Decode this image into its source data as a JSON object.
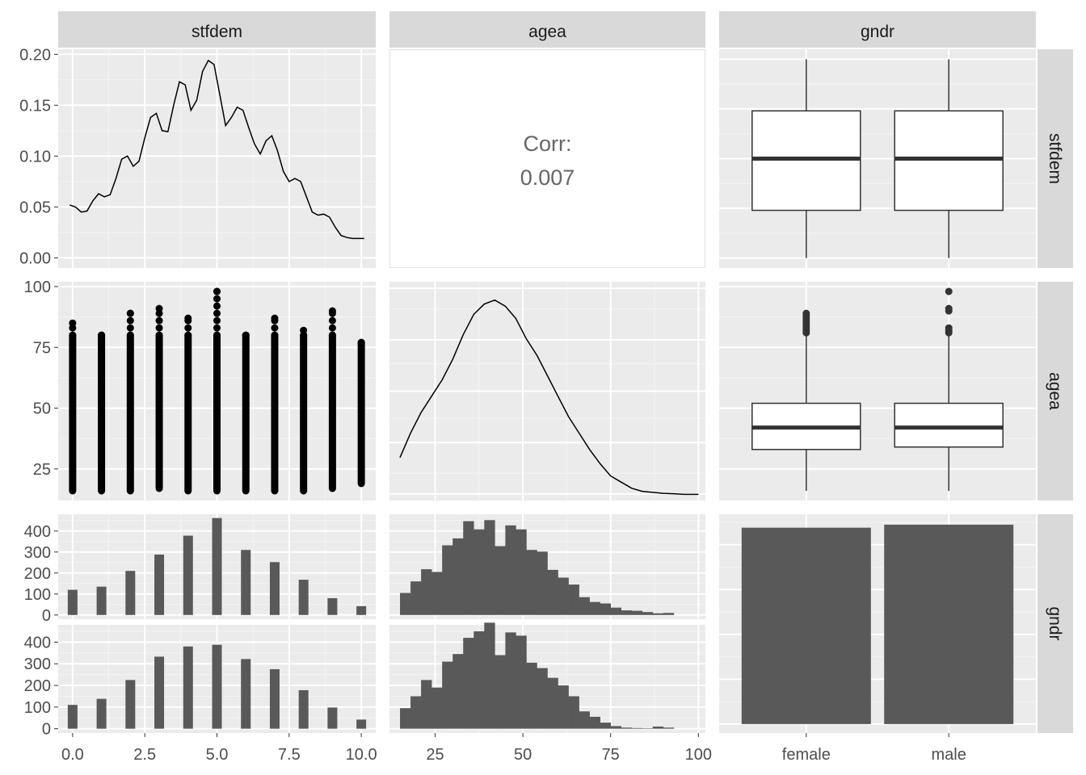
{
  "chart_data": {
    "type": "pairs",
    "variables": [
      "stfdem",
      "agea",
      "gndr"
    ],
    "strip_labels": {
      "columns": [
        "stfdem",
        "agea",
        "gndr"
      ],
      "rows": [
        "stfdem",
        "agea",
        "gndr"
      ]
    },
    "axes": {
      "stfdem": {
        "ticks": [
          0.0,
          2.5,
          5.0,
          7.5,
          10.0
        ],
        "tick_labels": [
          "0.0",
          "2.5",
          "5.0",
          "7.5",
          "10.0"
        ],
        "range": [
          -0.5,
          10.5
        ]
      },
      "agea": {
        "ticks": [
          25,
          50,
          75,
          100
        ],
        "tick_labels": [
          "25",
          "50",
          "75",
          "100"
        ],
        "range": [
          12,
          102
        ]
      },
      "gndr": {
        "categories": [
          "female",
          "male"
        ]
      },
      "density_stfdem_y": {
        "ticks": [
          0.0,
          0.05,
          0.1,
          0.15,
          0.2
        ],
        "tick_labels": [
          "0.00",
          "0.05",
          "0.10",
          "0.15",
          "0.20"
        ],
        "range": [
          -0.01,
          0.205
        ]
      },
      "count_y": {
        "ticks": [
          0,
          100,
          200,
          300,
          400
        ],
        "tick_labels": [
          "0",
          "100",
          "200",
          "300",
          "400"
        ],
        "range": [
          -20,
          480
        ]
      }
    },
    "correlation": {
      "label": "Corr:",
      "value": "0.007"
    },
    "stfdem_density": {
      "x": [
        -0.1,
        0.1,
        0.3,
        0.5,
        0.7,
        0.9,
        1.1,
        1.3,
        1.5,
        1.7,
        1.9,
        2.1,
        2.3,
        2.5,
        2.7,
        2.9,
        3.1,
        3.3,
        3.5,
        3.7,
        3.9,
        4.1,
        4.3,
        4.5,
        4.7,
        4.9,
        5.1,
        5.3,
        5.5,
        5.7,
        5.9,
        6.1,
        6.3,
        6.5,
        6.7,
        6.9,
        7.1,
        7.3,
        7.5,
        7.7,
        7.9,
        8.1,
        8.3,
        8.5,
        8.7,
        8.9,
        9.1,
        9.3,
        9.5,
        9.7,
        9.9,
        10.1
      ],
      "y": [
        0.052,
        0.05,
        0.045,
        0.046,
        0.056,
        0.063,
        0.06,
        0.062,
        0.078,
        0.097,
        0.1,
        0.09,
        0.095,
        0.118,
        0.138,
        0.142,
        0.125,
        0.124,
        0.15,
        0.173,
        0.17,
        0.145,
        0.155,
        0.183,
        0.194,
        0.19,
        0.16,
        0.13,
        0.138,
        0.148,
        0.145,
        0.128,
        0.112,
        0.102,
        0.115,
        0.12,
        0.105,
        0.085,
        0.075,
        0.078,
        0.075,
        0.06,
        0.045,
        0.042,
        0.043,
        0.04,
        0.03,
        0.022,
        0.02,
        0.019,
        0.019,
        0.019
      ]
    },
    "agea_density": {
      "x": [
        15,
        18,
        21,
        24,
        27,
        30,
        33,
        36,
        39,
        42,
        45,
        48,
        51,
        54,
        57,
        60,
        63,
        66,
        69,
        72,
        75,
        78,
        81,
        84,
        87,
        90,
        93,
        96,
        100
      ],
      "y": [
        0.18,
        0.3,
        0.4,
        0.48,
        0.56,
        0.66,
        0.78,
        0.88,
        0.93,
        0.95,
        0.92,
        0.86,
        0.76,
        0.68,
        0.58,
        0.48,
        0.38,
        0.3,
        0.22,
        0.15,
        0.09,
        0.06,
        0.03,
        0.015,
        0.01,
        0.005,
        0.003,
        0.0,
        0.0
      ]
    },
    "stfdem_scatter": {
      "groups": [
        {
          "x": 0,
          "min": 16,
          "max": 85
        },
        {
          "x": 1,
          "min": 16,
          "max": 80
        },
        {
          "x": 2,
          "min": 16,
          "max": 89
        },
        {
          "x": 3,
          "min": 17,
          "max": 91
        },
        {
          "x": 4,
          "min": 16,
          "max": 87
        },
        {
          "x": 5,
          "min": 16,
          "max": 98
        },
        {
          "x": 6,
          "min": 16,
          "max": 80
        },
        {
          "x": 7,
          "min": 16,
          "max": 87
        },
        {
          "x": 8,
          "min": 16,
          "max": 82
        },
        {
          "x": 9,
          "min": 17,
          "max": 90
        },
        {
          "x": 10,
          "min": 19,
          "max": 77
        }
      ]
    },
    "boxplots_stfdem_by_gndr": [
      {
        "group": "female",
        "q1": 2.4,
        "median": 5.0,
        "q3": 7.4,
        "lower": 0,
        "upper": 10
      },
      {
        "group": "male",
        "q1": 2.4,
        "median": 5.0,
        "q3": 7.4,
        "lower": 0,
        "upper": 10
      }
    ],
    "boxplots_agea_by_gndr": [
      {
        "group": "female",
        "q1": 33,
        "median": 42,
        "q3": 52,
        "lower": 16,
        "upper": 80,
        "outliers": [
          81,
          82,
          83,
          84,
          85,
          86,
          87,
          88,
          89
        ]
      },
      {
        "group": "male",
        "q1": 34,
        "median": 42,
        "q3": 52,
        "lower": 16,
        "upper": 80,
        "outliers": [
          81,
          82,
          83,
          90,
          91,
          98
        ]
      }
    ],
    "hist_stfdem_by_gndr": [
      {
        "group": "female",
        "x": [
          0,
          1,
          2,
          3,
          4,
          5,
          6,
          7,
          8,
          9,
          10
        ],
        "values": [
          120,
          135,
          210,
          288,
          378,
          462,
          310,
          252,
          168,
          80,
          42
        ]
      },
      {
        "group": "male",
        "x": [
          0,
          1,
          2,
          3,
          4,
          5,
          6,
          7,
          8,
          9,
          10
        ],
        "values": [
          110,
          138,
          225,
          333,
          380,
          388,
          322,
          275,
          178,
          98,
          42
        ]
      }
    ],
    "hist_agea_by_gndr": {
      "bin_width": 3,
      "bin_start": 15,
      "groups": [
        {
          "group": "female",
          "values": [
            105,
            160,
            218,
            205,
            332,
            365,
            447,
            408,
            452,
            328,
            427,
            408,
            310,
            302,
            215,
            178,
            145,
            85,
            62,
            55,
            35,
            22,
            20,
            14,
            8,
            10
          ]
        },
        {
          "group": "male",
          "values": [
            95,
            150,
            225,
            190,
            310,
            345,
            420,
            450,
            490,
            340,
            445,
            430,
            305,
            280,
            235,
            200,
            150,
            80,
            55,
            28,
            12,
            5,
            3,
            2,
            10,
            5
          ]
        }
      ]
    },
    "bar_gndr": {
      "categories": [
        "female",
        "male"
      ],
      "values": [
        1095,
        1112
      ]
    }
  }
}
